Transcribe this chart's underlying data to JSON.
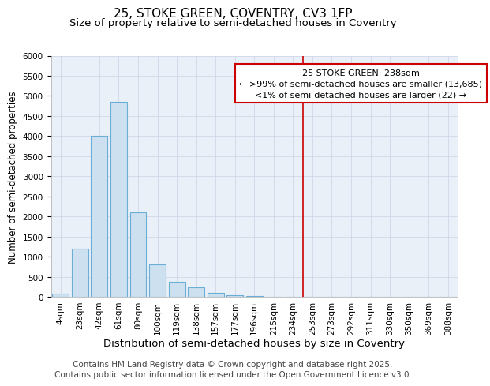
{
  "title": "25, STOKE GREEN, COVENTRY, CV3 1FP",
  "subtitle": "Size of property relative to semi-detached houses in Coventry",
  "xlabel": "Distribution of semi-detached houses by size in Coventry",
  "ylabel": "Number of semi-detached properties",
  "bin_labels": [
    "4sqm",
    "23sqm",
    "42sqm",
    "61sqm",
    "80sqm",
    "100sqm",
    "119sqm",
    "138sqm",
    "157sqm",
    "177sqm",
    "196sqm",
    "215sqm",
    "234sqm",
    "253sqm",
    "273sqm",
    "292sqm",
    "311sqm",
    "330sqm",
    "350sqm",
    "369sqm",
    "388sqm"
  ],
  "bar_heights": [
    75,
    1200,
    4000,
    4850,
    2100,
    800,
    380,
    230,
    100,
    40,
    15,
    5,
    0,
    0,
    0,
    0,
    0,
    0,
    0,
    0,
    0
  ],
  "bar_color": "#cce0f0",
  "bar_edge_color": "#6aaed6",
  "background_color": "#eaf0f8",
  "red_line_x": 12.5,
  "red_line_color": "#cc0000",
  "annotation_title": "25 STOKE GREEN: 238sqm",
  "annotation_line1": "← >99% of semi-detached houses are smaller (13,685)",
  "annotation_line2": "<1% of semi-detached houses are larger (22) →",
  "annotation_box_color": "#cc0000",
  "ylim": [
    0,
    6000
  ],
  "yticks": [
    0,
    500,
    1000,
    1500,
    2000,
    2500,
    3000,
    3500,
    4000,
    4500,
    5000,
    5500,
    6000
  ],
  "footer1": "Contains HM Land Registry data © Crown copyright and database right 2025.",
  "footer2": "Contains public sector information licensed under the Open Government Licence v3.0.",
  "title_fontsize": 11,
  "subtitle_fontsize": 9.5,
  "xlabel_fontsize": 9.5,
  "ylabel_fontsize": 8.5,
  "tick_fontsize": 7.5,
  "annotation_fontsize": 8,
  "footer_fontsize": 7.5
}
